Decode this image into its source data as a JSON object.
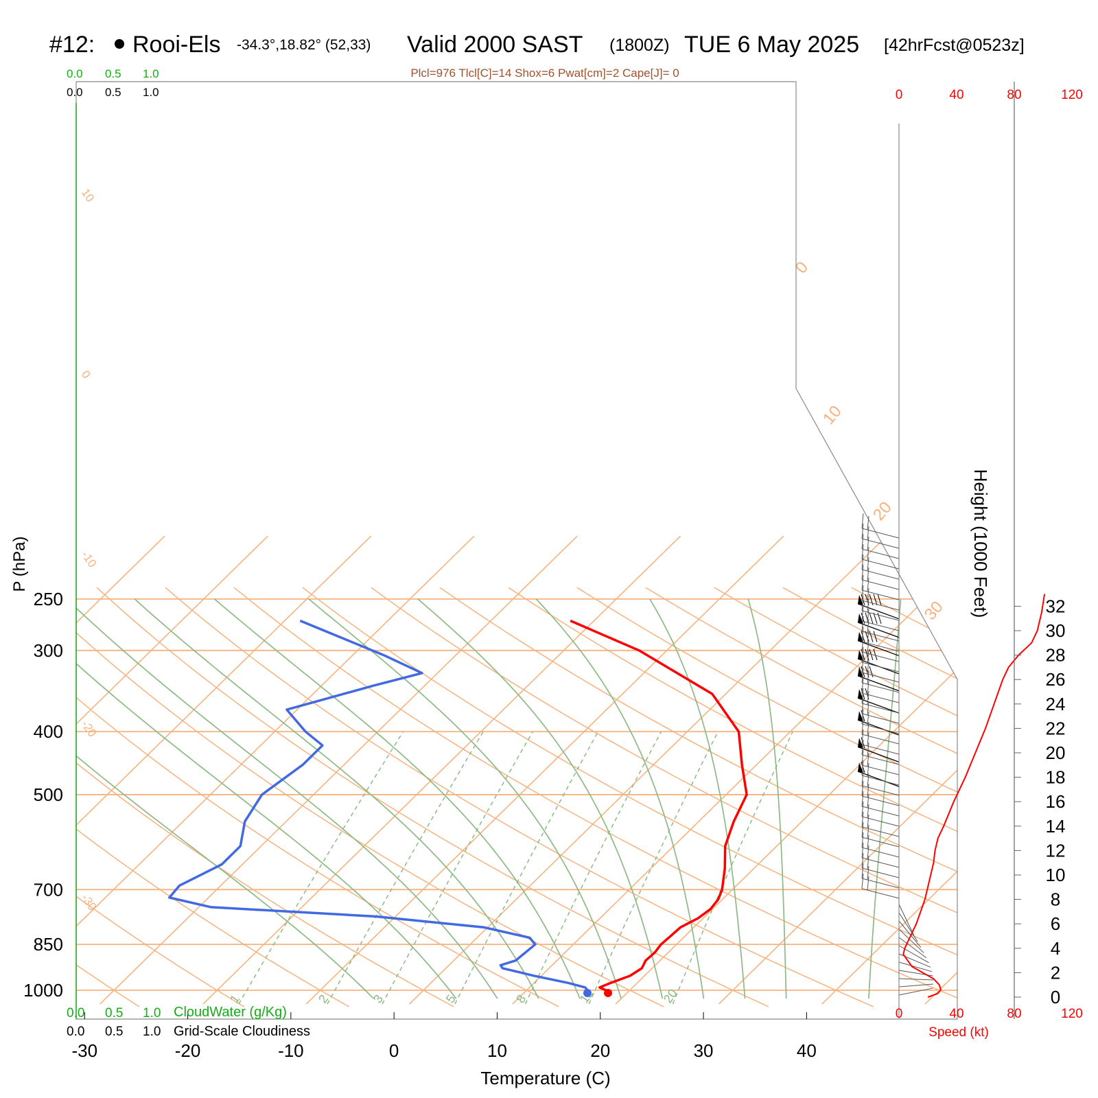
{
  "header": {
    "station_id": "#12:",
    "station_name": "Rooi-Els",
    "coords": "-34.3°,18.82° (52,33)",
    "valid": "Valid 2000 SAST",
    "zulu": "(1800Z)",
    "date": "TUE 6 May 2025",
    "forecast": "[42hrFcst@0523z]",
    "params": "Plcl=976 Tlcl[C]=14 Shox=6 Pwat[cm]=2 Cape[J]= 0"
  },
  "colors": {
    "temperature": "#ff0000",
    "dewpoint": "#4169e1",
    "isotherm": "#f7b27e",
    "dry_adiabat": "#f7b27e",
    "moist_adiabat": "#8cba84",
    "mixing_ratio": "#8cba84",
    "cloud_green": "#10b010",
    "params_brown": "#a0522d",
    "speed_red": "#ff0000"
  },
  "cloud_scale": {
    "top_green": [
      "0.0",
      "0.5",
      "1.0"
    ],
    "top_black": [
      "0.0",
      "0.5",
      "1.0"
    ],
    "bottom_green": [
      "0.0",
      "0.5",
      "1.0"
    ],
    "bottom_black": [
      "0.0",
      "0.5",
      "1.0"
    ],
    "cloudwater_label": "CloudWater (g/Kg)",
    "cloudiness_label": "Grid-Scale Cloudiness"
  },
  "chart_data": {
    "type": "line",
    "title": "Skew-T log-P sounding",
    "xlabel": "Temperature (C)",
    "ylabel": "P (hPa)",
    "xticks": [
      -30,
      -20,
      -10,
      0,
      10,
      20,
      30,
      40
    ],
    "pressure_ticks": [
      250,
      300,
      400,
      500,
      700,
      850,
      1000
    ],
    "isotherm_labels": [
      "10",
      "0",
      "-10",
      "-20",
      "-30",
      "0",
      "10",
      "20",
      "30"
    ],
    "mixing_ratio_labels": [
      "1",
      "2",
      "3",
      "5",
      "8",
      "12",
      "20"
    ],
    "surface_temp_C": 17.9,
    "surface_dewpoint_C": 15.9,
    "temperature": [
      {
        "p": 1000,
        "t": 17.7
      },
      {
        "p": 990,
        "t": 16.8
      },
      {
        "p": 975,
        "t": 17.4
      },
      {
        "p": 950,
        "t": 18.6
      },
      {
        "p": 925,
        "t": 19.0
      },
      {
        "p": 900,
        "t": 18.6
      },
      {
        "p": 875,
        "t": 18.7
      },
      {
        "p": 850,
        "t": 18.5
      },
      {
        "p": 825,
        "t": 18.6
      },
      {
        "p": 800,
        "t": 18.7
      },
      {
        "p": 775,
        "t": 19.5
      },
      {
        "p": 750,
        "t": 19.8
      },
      {
        "p": 725,
        "t": 19.6
      },
      {
        "p": 700,
        "t": 19.0
      },
      {
        "p": 650,
        "t": 17.2
      },
      {
        "p": 600,
        "t": 15.0
      },
      {
        "p": 550,
        "t": 13.4
      },
      {
        "p": 500,
        "t": 12.0
      },
      {
        "p": 450,
        "t": 8.6
      },
      {
        "p": 400,
        "t": 5.0
      },
      {
        "p": 350,
        "t": -1.3
      },
      {
        "p": 300,
        "t": -12.7
      },
      {
        "p": 270,
        "t": -22.3
      }
    ],
    "dewpoint": [
      {
        "p": 1000,
        "t": 15.9
      },
      {
        "p": 990,
        "t": 15.4
      },
      {
        "p": 975,
        "t": 13.4
      },
      {
        "p": 950,
        "t": 9.3
      },
      {
        "p": 925,
        "t": 5.5
      },
      {
        "p": 915,
        "t": 5.0
      },
      {
        "p": 900,
        "t": 6.0
      },
      {
        "p": 850,
        "t": 6.3
      },
      {
        "p": 830,
        "t": 5.1
      },
      {
        "p": 800,
        "t": -0.4
      },
      {
        "p": 770,
        "t": -11.9
      },
      {
        "p": 745,
        "t": -28.8
      },
      {
        "p": 720,
        "t": -33.8
      },
      {
        "p": 690,
        "t": -34.0
      },
      {
        "p": 640,
        "t": -32.0
      },
      {
        "p": 600,
        "t": -32.0
      },
      {
        "p": 550,
        "t": -34.0
      },
      {
        "p": 500,
        "t": -35.0
      },
      {
        "p": 450,
        "t": -34.0
      },
      {
        "p": 420,
        "t": -34.0
      },
      {
        "p": 400,
        "t": -37.0
      },
      {
        "p": 370,
        "t": -41.0
      },
      {
        "p": 340,
        "t": -35.0
      },
      {
        "p": 325,
        "t": -31.5
      },
      {
        "p": 305,
        "t": -37.0
      },
      {
        "p": 285,
        "t": -43.4
      },
      {
        "p": 270,
        "t": -48.5
      }
    ],
    "wind_panel": {
      "top_ticks": [
        "0",
        "40",
        "80",
        "120"
      ],
      "bottom_ticks": [
        "0",
        "40",
        "80",
        "120"
      ],
      "speed_label": "Speed (kt)"
    },
    "height_axis": {
      "label": "Height (1000 Feet)",
      "ticks": [
        0,
        2,
        4,
        6,
        8,
        10,
        12,
        14,
        16,
        18,
        20,
        22,
        24,
        26,
        28,
        30,
        32
      ]
    },
    "wind_speed_profile": [
      {
        "h": 0.0,
        "v": 20
      },
      {
        "h": 0.3,
        "v": 27
      },
      {
        "h": 0.6,
        "v": 29
      },
      {
        "h": 1.0,
        "v": 28
      },
      {
        "h": 1.5,
        "v": 24
      },
      {
        "h": 2.5,
        "v": 9
      },
      {
        "h": 3.5,
        "v": 3
      },
      {
        "h": 4.0,
        "v": 4
      },
      {
        "h": 5.0,
        "v": 8
      },
      {
        "h": 6.0,
        "v": 12
      },
      {
        "h": 8.0,
        "v": 18
      },
      {
        "h": 10.0,
        "v": 22
      },
      {
        "h": 11.0,
        "v": 24
      },
      {
        "h": 12.0,
        "v": 25
      },
      {
        "h": 13.0,
        "v": 27
      },
      {
        "h": 14.0,
        "v": 31
      },
      {
        "h": 16.0,
        "v": 38
      },
      {
        "h": 18.0,
        "v": 46
      },
      {
        "h": 20.0,
        "v": 53
      },
      {
        "h": 22.0,
        "v": 60
      },
      {
        "h": 24.0,
        "v": 66
      },
      {
        "h": 26.0,
        "v": 72
      },
      {
        "h": 27.0,
        "v": 76
      },
      {
        "h": 28.0,
        "v": 83
      },
      {
        "h": 29.0,
        "v": 92
      },
      {
        "h": 30.0,
        "v": 96
      },
      {
        "h": 31.5,
        "v": 99
      },
      {
        "h": 33.0,
        "v": 101
      }
    ],
    "wind_barbs_upper": [
      {
        "p": 265,
        "spd": 95
      },
      {
        "p": 283,
        "spd": 95
      },
      {
        "p": 302,
        "spd": 90
      },
      {
        "p": 322,
        "spd": 90
      },
      {
        "p": 342,
        "spd": 80
      },
      {
        "p": 370,
        "spd": 70
      },
      {
        "p": 400,
        "spd": 60
      },
      {
        "p": 440,
        "spd": 55
      },
      {
        "p": 480,
        "spd": 55
      }
    ]
  }
}
